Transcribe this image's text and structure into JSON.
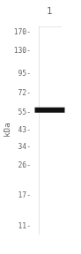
{
  "chart_data": {
    "type": "scatter",
    "y_label": "kDa",
    "categories": [
      "1"
    ],
    "values": [
      57
    ],
    "color": "#111111",
    "marker": "line",
    "log": "y",
    "ylim": [
      10,
      185
    ],
    "yticks": [
      {
        "value": 170,
        "label": "170-"
      },
      {
        "value": 130,
        "label": "130-"
      },
      {
        "value": 95,
        "label": "95-"
      },
      {
        "value": 72,
        "label": "72-"
      },
      {
        "value": 55,
        "label": "55-"
      },
      {
        "value": 43,
        "label": "43-"
      },
      {
        "value": 34,
        "label": "34-"
      },
      {
        "value": 26,
        "label": "26-"
      },
      {
        "value": 17,
        "label": "17-"
      },
      {
        "value": 11,
        "label": "11-"
      }
    ],
    "grid": false
  }
}
